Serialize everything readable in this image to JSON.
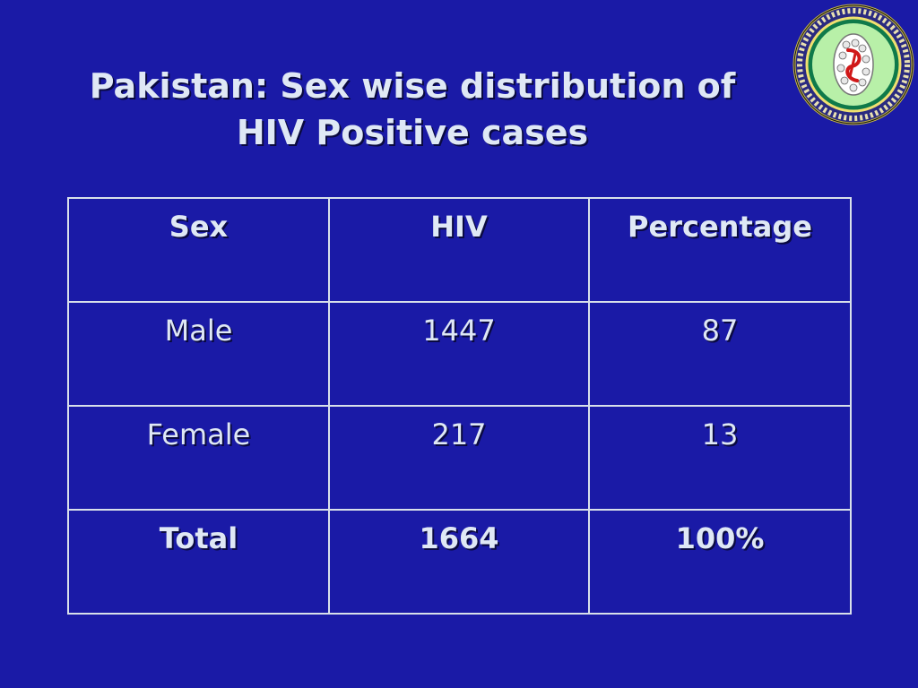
{
  "slide": {
    "title_line1": "Pakistan: Sex wise distribution of",
    "title_line2": "HIV Positive cases",
    "logo_icon": "institute-seal-icon"
  },
  "table": {
    "headers": [
      "Sex",
      "HIV",
      "Percentage"
    ],
    "rows": [
      [
        "Male",
        "1447",
        "87"
      ],
      [
        "Female",
        "217",
        "13"
      ]
    ],
    "total": [
      "Total",
      "1664",
      "100%"
    ]
  },
  "colors": {
    "background": "#1a1aa6",
    "text": "#dfe8f5",
    "grid": "#d8e0ea"
  }
}
